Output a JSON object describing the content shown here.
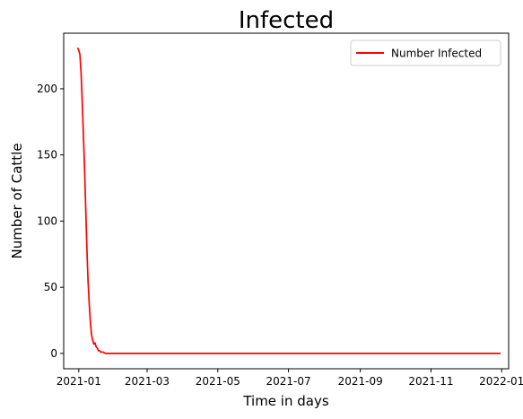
{
  "chart_data": {
    "type": "line",
    "title": "Infected",
    "xlabel": "Time in days",
    "ylabel": "Number of Cattle",
    "x_tick_labels": [
      "2021-01",
      "2021-03",
      "2021-05",
      "2021-07",
      "2021-09",
      "2021-11",
      "2022-01"
    ],
    "x_tick_dates": [
      "2021-01-01",
      "2021-03-01",
      "2021-05-01",
      "2021-07-01",
      "2021-09-01",
      "2021-11-01",
      "2022-01-01"
    ],
    "y_ticks": [
      0,
      50,
      100,
      150,
      200
    ],
    "xlim": [
      "2020-12-19",
      "2022-01-07"
    ],
    "ylim": [
      -11.6,
      242
    ],
    "grid": false,
    "legend_position": "top-right",
    "series": [
      {
        "name": "Number Infected",
        "color": "#ff0000",
        "x": [
          "2020-12-31",
          "2021-01-01",
          "2021-01-02",
          "2021-01-03",
          "2021-01-04",
          "2021-01-05",
          "2021-01-06",
          "2021-01-07",
          "2021-01-08",
          "2021-01-09",
          "2021-01-10",
          "2021-01-11",
          "2021-01-12",
          "2021-01-13",
          "2021-01-14",
          "2021-01-15",
          "2021-01-16",
          "2021-01-17",
          "2021-01-18",
          "2021-01-19",
          "2021-01-20",
          "2021-01-22",
          "2021-01-24",
          "2021-01-26",
          "2021-01-28",
          "2021-02-01",
          "2021-03-01",
          "2021-06-01",
          "2021-09-01",
          "2021-12-31"
        ],
        "y": [
          231,
          229,
          226,
          212,
          190,
          165,
          140,
          110,
          80,
          55,
          38,
          24,
          14,
          10,
          7,
          8,
          5,
          4,
          2,
          2,
          1,
          1,
          0,
          0,
          0,
          0,
          0,
          0,
          0,
          0
        ]
      }
    ]
  }
}
